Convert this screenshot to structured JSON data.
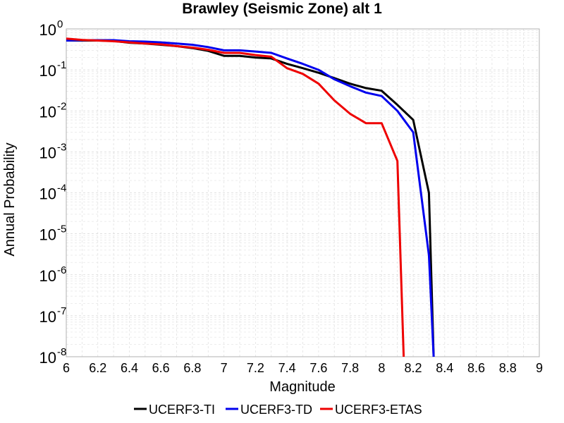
{
  "chart_data": {
    "type": "line",
    "title": "Brawley (Seismic Zone) alt 1",
    "xlabel": "Magnitude",
    "ylabel": "Annual Probability",
    "xlim": [
      6,
      9
    ],
    "ylim": [
      1e-08,
      1
    ],
    "yscale": "log",
    "grid": true,
    "legend_position": "bottom",
    "x_ticks": [
      "6",
      "6.2",
      "6.4",
      "6.6",
      "6.8",
      "7",
      "7.2",
      "7.4",
      "7.6",
      "7.8",
      "8",
      "8.2",
      "8.4",
      "8.6",
      "8.8",
      "9"
    ],
    "y_tick_exponents": [
      "0",
      "-1",
      "-2",
      "-3",
      "-4",
      "-5",
      "-6",
      "-7",
      "-8"
    ],
    "y_tick_base": "10",
    "series": [
      {
        "name": "UCERF3-TI",
        "color": "#000000",
        "x": [
          6.0,
          6.1,
          6.2,
          6.3,
          6.4,
          6.5,
          6.6,
          6.7,
          6.8,
          6.9,
          7.0,
          7.1,
          7.2,
          7.3,
          7.4,
          7.5,
          7.6,
          7.7,
          7.8,
          7.9,
          8.0,
          8.1,
          8.2,
          8.3,
          8.33
        ],
        "y": [
          0.52,
          0.52,
          0.52,
          0.51,
          0.46,
          0.44,
          0.41,
          0.38,
          0.34,
          0.29,
          0.22,
          0.22,
          0.2,
          0.19,
          0.14,
          0.11,
          0.085,
          0.063,
          0.046,
          0.036,
          0.031,
          0.014,
          0.006,
          0.0001,
          1e-08
        ]
      },
      {
        "name": "UCERF3-TD",
        "color": "#0000ee",
        "x": [
          6.0,
          6.1,
          6.2,
          6.3,
          6.4,
          6.5,
          6.6,
          6.7,
          6.8,
          6.9,
          7.0,
          7.1,
          7.2,
          7.3,
          7.4,
          7.5,
          7.6,
          7.7,
          7.8,
          7.9,
          8.0,
          8.1,
          8.2,
          8.3,
          8.33
        ],
        "y": [
          0.52,
          0.53,
          0.53,
          0.53,
          0.5,
          0.49,
          0.47,
          0.44,
          0.41,
          0.36,
          0.3,
          0.3,
          0.28,
          0.26,
          0.19,
          0.14,
          0.1,
          0.059,
          0.04,
          0.028,
          0.023,
          0.01,
          0.003,
          3e-06,
          1e-08
        ]
      },
      {
        "name": "UCERF3-ETAS",
        "color": "#ee0000",
        "x": [
          6.0,
          6.1,
          6.2,
          6.3,
          6.4,
          6.5,
          6.6,
          6.7,
          6.8,
          6.9,
          7.0,
          7.1,
          7.2,
          7.3,
          7.4,
          7.5,
          7.6,
          7.7,
          7.8,
          7.9,
          8.0,
          8.1,
          8.14
        ],
        "y": [
          0.58,
          0.54,
          0.52,
          0.5,
          0.47,
          0.44,
          0.42,
          0.38,
          0.35,
          0.31,
          0.26,
          0.26,
          0.23,
          0.21,
          0.11,
          0.08,
          0.046,
          0.018,
          0.0085,
          0.005,
          0.005,
          0.0006,
          1e-08
        ]
      }
    ]
  }
}
